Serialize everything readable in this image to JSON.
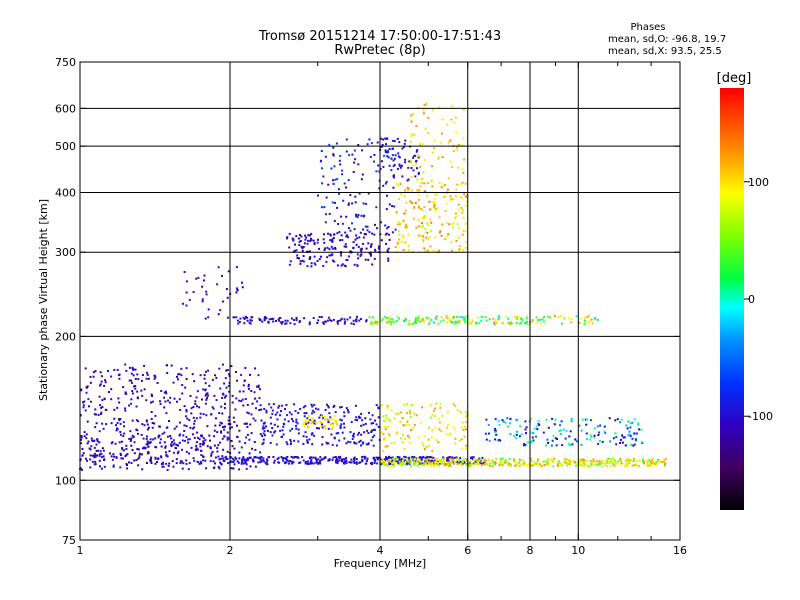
{
  "header": {
    "title_line1": "Tromsø 20151214 17:50:00-17:51:43",
    "title_line2": "RwPretec (8p)",
    "stats_heading": "Phases",
    "stats_o": "mean, sd,O: -96.8, 19.7",
    "stats_x": "mean, sd,X:  93.5, 25.5"
  },
  "colorbar": {
    "unit_label": "[deg]",
    "ticks": [
      {
        "value": 100,
        "label": "100"
      },
      {
        "value": 0,
        "label": "0"
      },
      {
        "value": -100,
        "label": "-100"
      }
    ],
    "range": [
      -180,
      180
    ]
  },
  "chart_data": {
    "type": "scatter",
    "title": "Tromsø 20151214 17:50:00-17:51:43",
    "subtitle": "RwPretec (8p)",
    "xlabel": "Frequency [MHz]",
    "ylabel": "Stationary phase Virtual Height [km]",
    "xscale": "log",
    "yscale": "log",
    "xlim": [
      1,
      16
    ],
    "ylim": [
      75,
      750
    ],
    "x_ticks": [
      {
        "value": 1,
        "label": "1"
      },
      {
        "value": 2,
        "label": "2"
      },
      {
        "value": 4,
        "label": "4"
      },
      {
        "value": 6,
        "label": "6"
      },
      {
        "value": 8,
        "label": "8"
      },
      {
        "value": 10,
        "label": "10"
      },
      {
        "value": 16,
        "label": "16"
      }
    ],
    "x_minor_ticks": [
      3,
      5,
      7,
      9,
      12,
      14
    ],
    "x_grid": [
      2,
      4,
      6,
      8,
      10
    ],
    "y_ticks": [
      {
        "value": 75,
        "label": "75"
      },
      {
        "value": 100,
        "label": "100"
      },
      {
        "value": 200,
        "label": "200"
      },
      {
        "value": 300,
        "label": "300"
      },
      {
        "value": 400,
        "label": "400"
      },
      {
        "value": 500,
        "label": "500"
      },
      {
        "value": 600,
        "label": "600"
      },
      {
        "value": 750,
        "label": "750"
      }
    ],
    "y_grid": [
      100,
      200,
      300,
      400,
      500,
      600
    ],
    "grid": true,
    "color_variable": "phase [deg]",
    "clusters": [
      {
        "x": [
          1.0,
          2.3
        ],
        "y": [
          105,
          175
        ],
        "n": 520,
        "phase": [
          -125,
          -85
        ]
      },
      {
        "x": [
          1.0,
          1.9
        ],
        "y": [
          108,
          125
        ],
        "n": 160,
        "phase": [
          -120,
          -90
        ]
      },
      {
        "x": [
          1.9,
          6.5
        ],
        "y": [
          108,
          112
        ],
        "n": 380,
        "phase": [
          -115,
          -85
        ]
      },
      {
        "x": [
          4.0,
          15.0
        ],
        "y": [
          107,
          111
        ],
        "n": 420,
        "phase": [
          40,
          130
        ]
      },
      {
        "x": [
          2.3,
          4.0
        ],
        "y": [
          118,
          145
        ],
        "n": 230,
        "phase": [
          -115,
          -80
        ]
      },
      {
        "x": [
          2.8,
          3.3
        ],
        "y": [
          128,
          137
        ],
        "n": 40,
        "phase": [
          80,
          115
        ]
      },
      {
        "x": [
          4.0,
          6.0
        ],
        "y": [
          115,
          145
        ],
        "n": 130,
        "phase": [
          60,
          130
        ]
      },
      {
        "x": [
          6.5,
          13.5
        ],
        "y": [
          118,
          135
        ],
        "n": 170,
        "phase": [
          -120,
          20
        ]
      },
      {
        "x": [
          2.0,
          3.8
        ],
        "y": [
          212,
          220
        ],
        "n": 90,
        "phase": [
          -120,
          -90
        ]
      },
      {
        "x": [
          3.8,
          11.0
        ],
        "y": [
          212,
          221
        ],
        "n": 200,
        "phase": [
          -20,
          130
        ]
      },
      {
        "x": [
          2.6,
          4.2
        ],
        "y": [
          280,
          330
        ],
        "n": 180,
        "phase": [
          -125,
          -85
        ]
      },
      {
        "x": [
          3.0,
          4.3
        ],
        "y": [
          330,
          520
        ],
        "n": 130,
        "phase": [
          -120,
          -60
        ]
      },
      {
        "x": [
          4.0,
          4.8
        ],
        "y": [
          420,
          520
        ],
        "n": 60,
        "phase": [
          -115,
          -80
        ]
      },
      {
        "x": [
          4.3,
          6.0
        ],
        "y": [
          300,
          420
        ],
        "n": 190,
        "phase": [
          70,
          140
        ]
      },
      {
        "x": [
          4.6,
          5.9
        ],
        "y": [
          420,
          620
        ],
        "n": 70,
        "phase": [
          60,
          130
        ]
      },
      {
        "x": [
          1.6,
          2.2
        ],
        "y": [
          215,
          280
        ],
        "n": 40,
        "phase": [
          -120,
          -90
        ]
      }
    ]
  }
}
